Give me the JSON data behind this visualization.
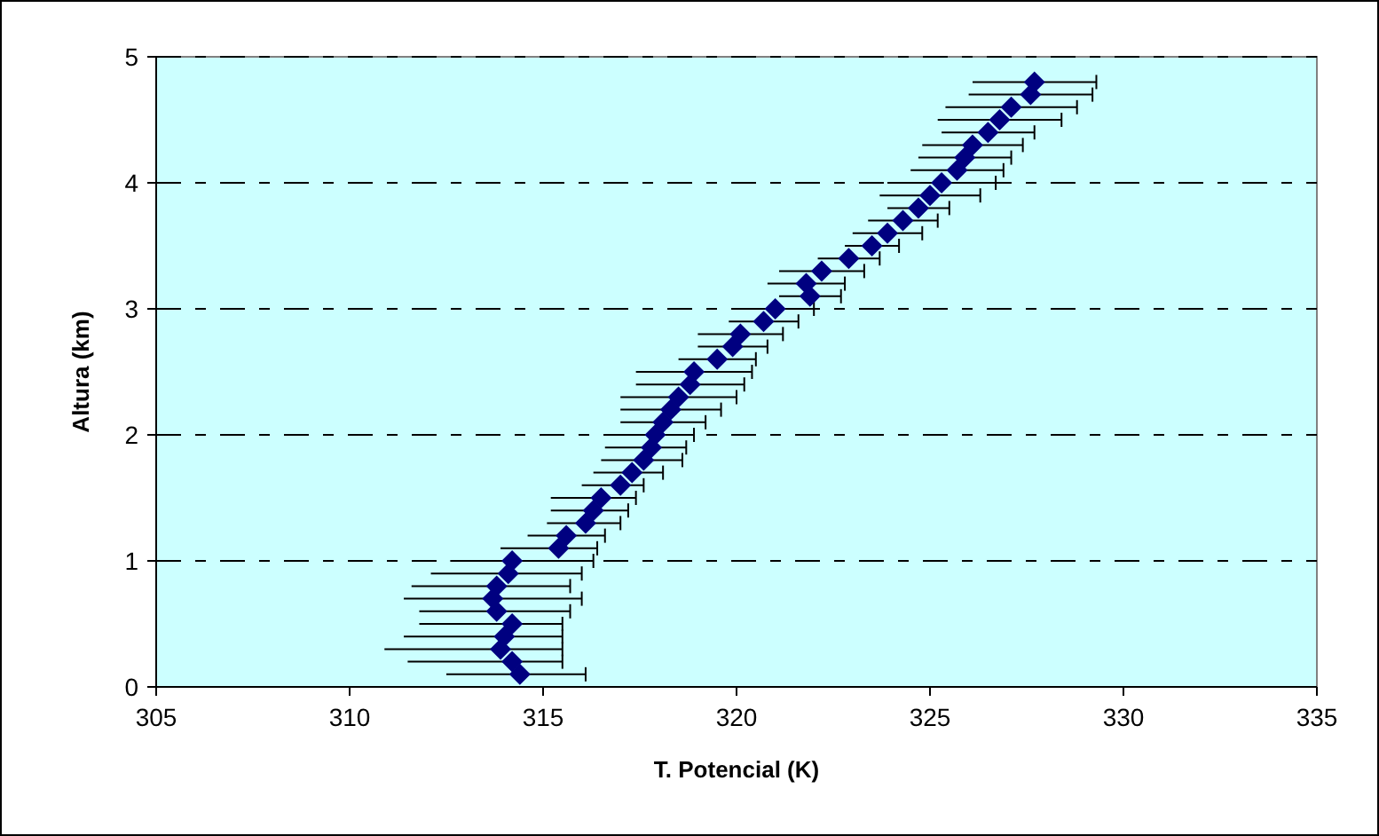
{
  "chart_data": {
    "type": "scatter",
    "xlabel": "T. Potencial (K)",
    "ylabel": "Altura (km)",
    "xlim": [
      305,
      335
    ],
    "xticks": [
      305,
      310,
      315,
      320,
      325,
      330,
      335
    ],
    "ylim": [
      0,
      5
    ],
    "yticks": [
      0,
      1,
      2,
      3,
      4,
      5
    ],
    "grid": "y",
    "marker": "diamond",
    "x": [
      314.4,
      314.2,
      313.9,
      314.0,
      314.2,
      313.8,
      313.7,
      313.8,
      314.1,
      314.2,
      315.4,
      315.6,
      316.1,
      316.3,
      316.5,
      317.0,
      317.3,
      317.6,
      317.8,
      317.9,
      318.1,
      318.3,
      318.5,
      318.8,
      318.9,
      319.5,
      319.9,
      320.1,
      320.7,
      321.0,
      321.9,
      321.8,
      322.2,
      322.9,
      323.5,
      323.9,
      324.3,
      324.7,
      325.0,
      325.3,
      325.7,
      325.9,
      326.1,
      326.5,
      326.8,
      327.1,
      327.6,
      327.7
    ],
    "series": [
      {
        "color": "#000080",
        "values": [
          0.1,
          0.2,
          0.3,
          0.4,
          0.5,
          0.6,
          0.7,
          0.8,
          0.9,
          1.0,
          1.1,
          1.2,
          1.3,
          1.4,
          1.5,
          1.6,
          1.7,
          1.8,
          1.9,
          2.0,
          2.1,
          2.2,
          2.3,
          2.4,
          2.5,
          2.6,
          2.7,
          2.8,
          2.9,
          3.0,
          3.1,
          3.2,
          3.3,
          3.4,
          3.5,
          3.6,
          3.7,
          3.8,
          3.9,
          4.0,
          4.1,
          4.2,
          4.3,
          4.4,
          4.5,
          4.6,
          4.7,
          4.8
        ],
        "xerrors": [
          [
            312.5,
            316.1
          ],
          [
            311.5,
            315.5
          ],
          [
            310.9,
            315.5
          ],
          [
            311.4,
            315.5
          ],
          [
            311.8,
            315.5
          ],
          [
            311.8,
            315.7
          ],
          [
            311.4,
            316.0
          ],
          [
            311.6,
            315.7
          ],
          [
            312.1,
            316.0
          ],
          [
            312.6,
            316.3
          ],
          [
            313.9,
            316.4
          ],
          [
            314.6,
            316.6
          ],
          [
            315.1,
            317.0
          ],
          [
            315.2,
            317.2
          ],
          [
            315.2,
            317.4
          ],
          [
            316.0,
            317.6
          ],
          [
            316.3,
            318.1
          ],
          [
            316.5,
            318.6
          ],
          [
            316.6,
            318.7
          ],
          [
            316.8,
            318.9
          ],
          [
            317.0,
            319.2
          ],
          [
            317.0,
            319.6
          ],
          [
            317.0,
            320.0
          ],
          [
            317.4,
            320.2
          ],
          [
            317.4,
            320.4
          ],
          [
            318.5,
            320.5
          ],
          [
            319.0,
            320.8
          ],
          [
            319.0,
            321.2
          ],
          [
            319.8,
            321.6
          ],
          [
            320.0,
            322.0
          ],
          [
            321.1,
            322.7
          ],
          [
            320.8,
            322.8
          ],
          [
            321.1,
            323.3
          ],
          [
            322.1,
            323.7
          ],
          [
            322.8,
            324.2
          ],
          [
            323.0,
            324.8
          ],
          [
            323.4,
            325.2
          ],
          [
            323.9,
            325.5
          ],
          [
            323.7,
            326.3
          ],
          [
            323.9,
            326.7
          ],
          [
            324.5,
            326.9
          ],
          [
            324.7,
            327.1
          ],
          [
            324.8,
            327.4
          ],
          [
            325.3,
            327.7
          ],
          [
            325.2,
            328.4
          ],
          [
            325.4,
            328.8
          ],
          [
            326.0,
            329.2
          ],
          [
            326.1,
            329.3
          ]
        ]
      }
    ]
  }
}
